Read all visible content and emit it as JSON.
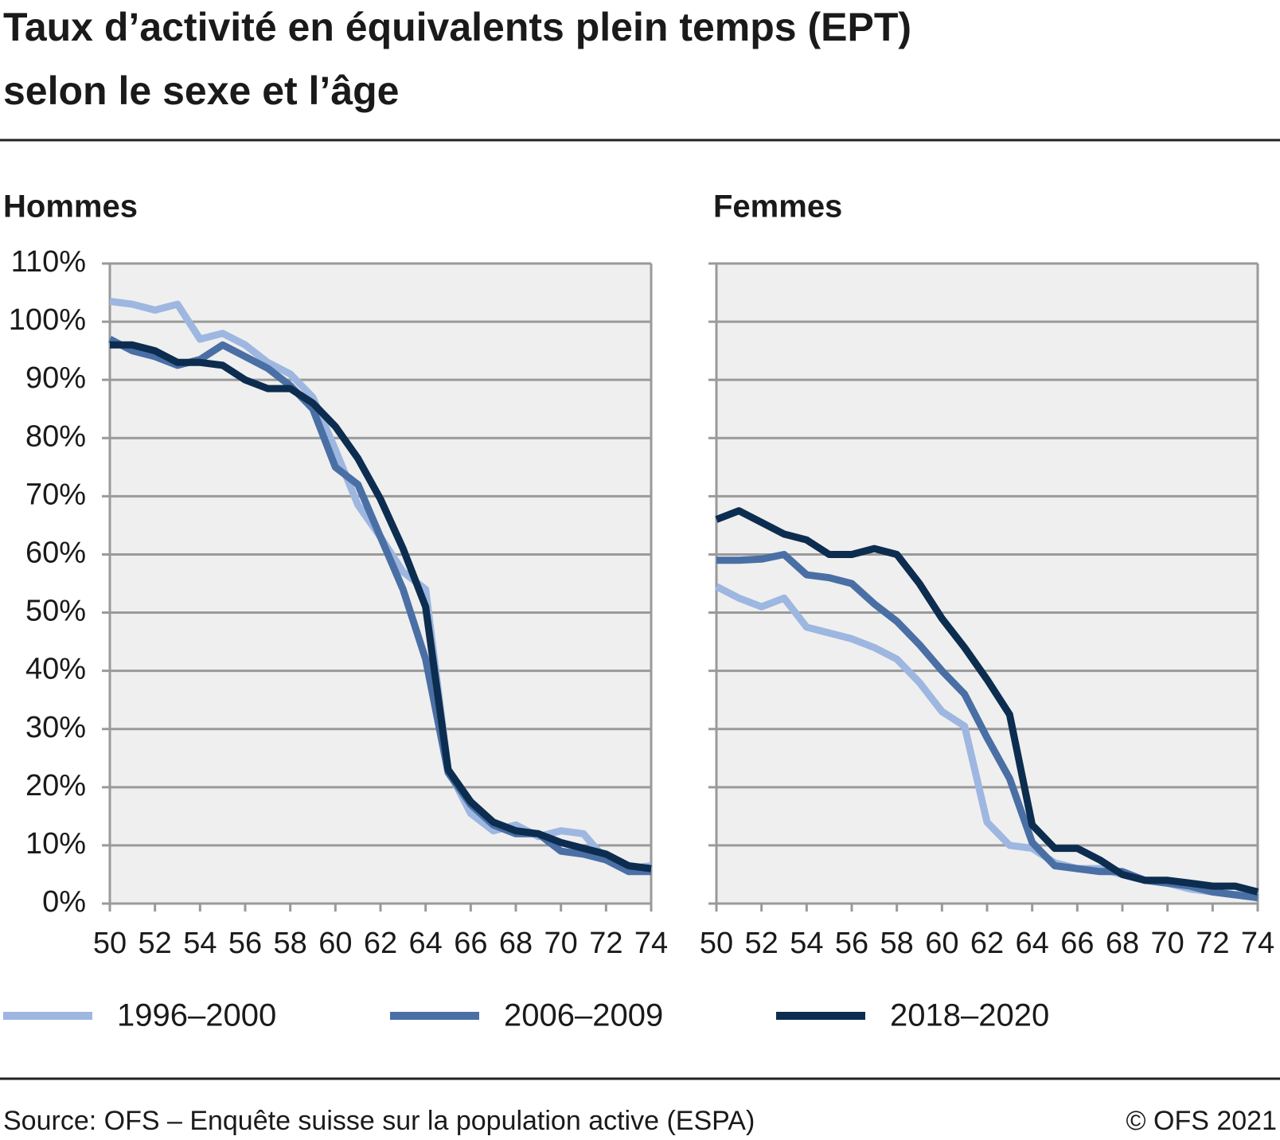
{
  "title": [
    "Taux d’activité en équivalents plein temps (EPT)",
    "selon le sexe et l’âge"
  ],
  "chart_data": [
    {
      "type": "line",
      "subtitle": "Hommes",
      "x": [
        50,
        51,
        52,
        53,
        54,
        55,
        56,
        57,
        58,
        59,
        60,
        61,
        62,
        63,
        64,
        65,
        66,
        67,
        68,
        69,
        70,
        71,
        72,
        73,
        74
      ],
      "xlim": [
        50,
        74
      ],
      "xticks": [
        50,
        52,
        54,
        56,
        58,
        60,
        62,
        64,
        66,
        68,
        70,
        72,
        74
      ],
      "ylim": [
        0,
        110
      ],
      "yticks": [
        {
          "value": 0,
          "label": "0%"
        },
        {
          "value": 10,
          "label": "10%"
        },
        {
          "value": 20,
          "label": "20%"
        },
        {
          "value": 30,
          "label": "30%"
        },
        {
          "value": 40,
          "label": "40%"
        },
        {
          "value": 50,
          "label": "50%"
        },
        {
          "value": 60,
          "label": "60%"
        },
        {
          "value": 70,
          "label": "70%"
        },
        {
          "value": 80,
          "label": "80%"
        },
        {
          "value": 90,
          "label": "90%"
        },
        {
          "value": 100,
          "label": "100%"
        },
        {
          "value": 110,
          "label": "110%"
        }
      ],
      "grid": true,
      "series": [
        {
          "name": "1996–2000",
          "color": "#9db7e0",
          "values": [
            103.5,
            103,
            102,
            103,
            97,
            98,
            96,
            93,
            91,
            87,
            78,
            68.5,
            63,
            57,
            54,
            23,
            15.5,
            12.5,
            13.5,
            11.5,
            12.5,
            12,
            7.5,
            6,
            6.5
          ]
        },
        {
          "name": "2006–2009",
          "color": "#4a6fa5",
          "values": [
            97,
            95,
            94,
            92.5,
            93.5,
            96,
            94,
            92,
            89,
            85,
            75,
            72,
            63,
            54,
            42,
            22.5,
            17,
            13.5,
            12,
            12,
            9,
            8.5,
            7.5,
            5.5,
            5.5
          ]
        },
        {
          "name": "2018–2020",
          "color": "#0c2d4f",
          "values": [
            96,
            96,
            95,
            93,
            93,
            92.5,
            90,
            88.5,
            88.5,
            86,
            82,
            76.5,
            69.5,
            61,
            51,
            23,
            17.5,
            14,
            12.5,
            12,
            10.5,
            9.5,
            8.5,
            6.5,
            6
          ]
        }
      ]
    },
    {
      "type": "line",
      "subtitle": "Femmes",
      "x": [
        50,
        51,
        52,
        53,
        54,
        55,
        56,
        57,
        58,
        59,
        60,
        61,
        62,
        63,
        64,
        65,
        66,
        67,
        68,
        69,
        70,
        71,
        72,
        73,
        74
      ],
      "xlim": [
        50,
        74
      ],
      "xticks": [
        50,
        52,
        54,
        56,
        58,
        60,
        62,
        64,
        66,
        68,
        70,
        72,
        74
      ],
      "ylim": [
        0,
        110
      ],
      "yticks": [
        0,
        10,
        20,
        30,
        40,
        50,
        60,
        70,
        80,
        90,
        100,
        110
      ],
      "ytick_labels": false,
      "grid": true,
      "series": [
        {
          "color": "#9db7e0",
          "values": [
            54.5,
            52.5,
            51,
            52.5,
            47.5,
            46.5,
            45.5,
            44,
            42,
            38,
            33,
            30.5,
            14,
            10,
            9.5,
            7,
            6,
            6,
            5,
            4,
            3.5,
            2.5,
            2,
            1.5,
            2
          ]
        },
        {
          "color": "#4a6fa5",
          "values": [
            59,
            59,
            59.2,
            60,
            56.5,
            56,
            55,
            51.5,
            48.5,
            44.5,
            40,
            36,
            28.5,
            21.5,
            10.5,
            6.5,
            6,
            5.5,
            5.5,
            4,
            3.5,
            3,
            2,
            1.5,
            1
          ]
        },
        {
          "color": "#0c2d4f",
          "values": [
            66,
            67.5,
            65.5,
            63.5,
            62.5,
            60,
            60,
            61,
            60,
            55,
            49,
            44,
            38.5,
            32.5,
            13.5,
            9.5,
            9.5,
            7.5,
            5,
            4,
            4,
            3.5,
            3,
            3,
            2
          ]
        }
      ]
    }
  ],
  "source": "Source: OFS – Enquête suisse sur la population active (ESPA)",
  "copyright": "© OFS 2021"
}
